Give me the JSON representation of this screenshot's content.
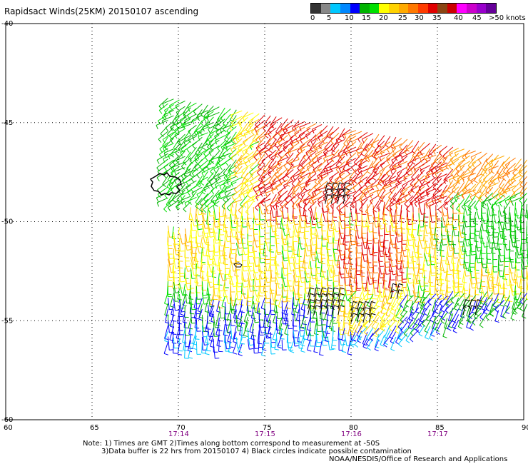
{
  "title": "Rapidsact Winds(25KM) 20150107 ascending",
  "legend": {
    "labels": [
      "0",
      "5",
      "10",
      "15",
      "20",
      "25",
      "30",
      "35",
      "40",
      "45",
      ">50 knots"
    ],
    "colors": [
      "#333333",
      "#888888",
      "#00c8ff",
      "#0088ff",
      "#0000ff",
      "#00b400",
      "#00e000",
      "#ffff00",
      "#ffd200",
      "#ffaa00",
      "#ff7800",
      "#ff3c00",
      "#e00000",
      "#8b4513",
      "#cc0000",
      "#ff00ff",
      "#cc00cc",
      "#9900cc",
      "#660099"
    ]
  },
  "axes": {
    "lon_ticks": [
      "60",
      "65",
      "70",
      "75",
      "80",
      "85",
      "90"
    ],
    "lat_ticks": [
      "-40",
      "-45",
      "-50",
      "-55",
      "-60"
    ],
    "time_ticks": [
      "17:14",
      "17:15",
      "17:16",
      "17:17"
    ],
    "time_color": "#800080"
  },
  "notes": {
    "line1": "Note: 1) Times are GMT 2)Times along bottom correspond to measurement at -50S",
    "line2": "3)Data buffer is 22 hrs from 20150107 4) Black circles indicate possible contamination"
  },
  "credit": "NOAA/NESDIS/Office of Research and Applications",
  "wind_colors": {
    "calm_blue": "#0000ff",
    "light_blue": "#00c8ff",
    "green": "#00b400",
    "light_green": "#00e000",
    "yellow": "#ffff00",
    "gold": "#ffd200",
    "orange": "#ffaa00",
    "dark_orange": "#ff7800",
    "red": "#e00000",
    "contamination": "#000000",
    "land": "#000000"
  }
}
